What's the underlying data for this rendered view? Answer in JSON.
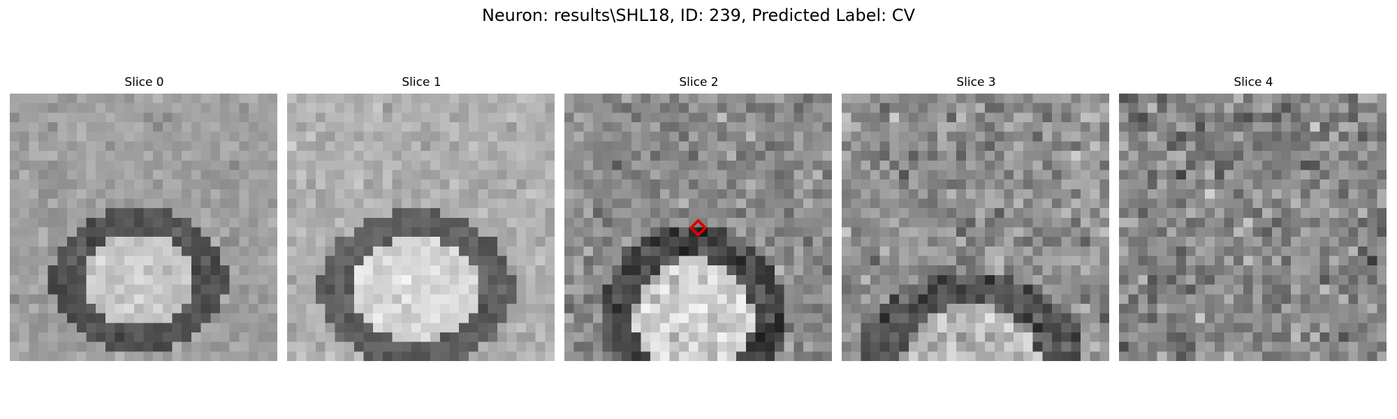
{
  "figure": {
    "title": "Neuron: results\\SHL18, ID: 239, Predicted Label: CV"
  },
  "slices": [
    {
      "label": "Slice 0"
    },
    {
      "label": "Slice 1"
    },
    {
      "label": "Slice 2",
      "has_marker": true,
      "marker_color": "#e00000"
    },
    {
      "label": "Slice 3"
    },
    {
      "label": "Slice 4"
    }
  ],
  "colors": {
    "background": "#ffffff",
    "marker": "#e00000"
  }
}
